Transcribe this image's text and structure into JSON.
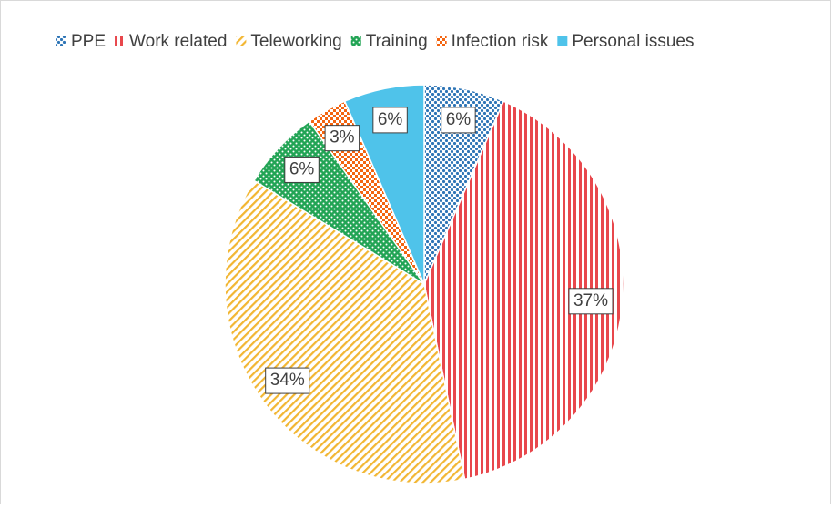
{
  "chart_data": {
    "type": "pie",
    "categories": [
      "PPE",
      "Work related",
      "Teleworking",
      "Training",
      "Infection risk",
      "Personal issues"
    ],
    "values": [
      6,
      37,
      34,
      6,
      3,
      6
    ],
    "value_labels": [
      "6%",
      "37%",
      "34%",
      "6%",
      "3%",
      "6%"
    ],
    "colors": [
      "#2e75b6",
      "#e8474c",
      "#f2b632",
      "#22a455",
      "#f36410",
      "#4fc3ea"
    ],
    "legend": "top"
  }
}
